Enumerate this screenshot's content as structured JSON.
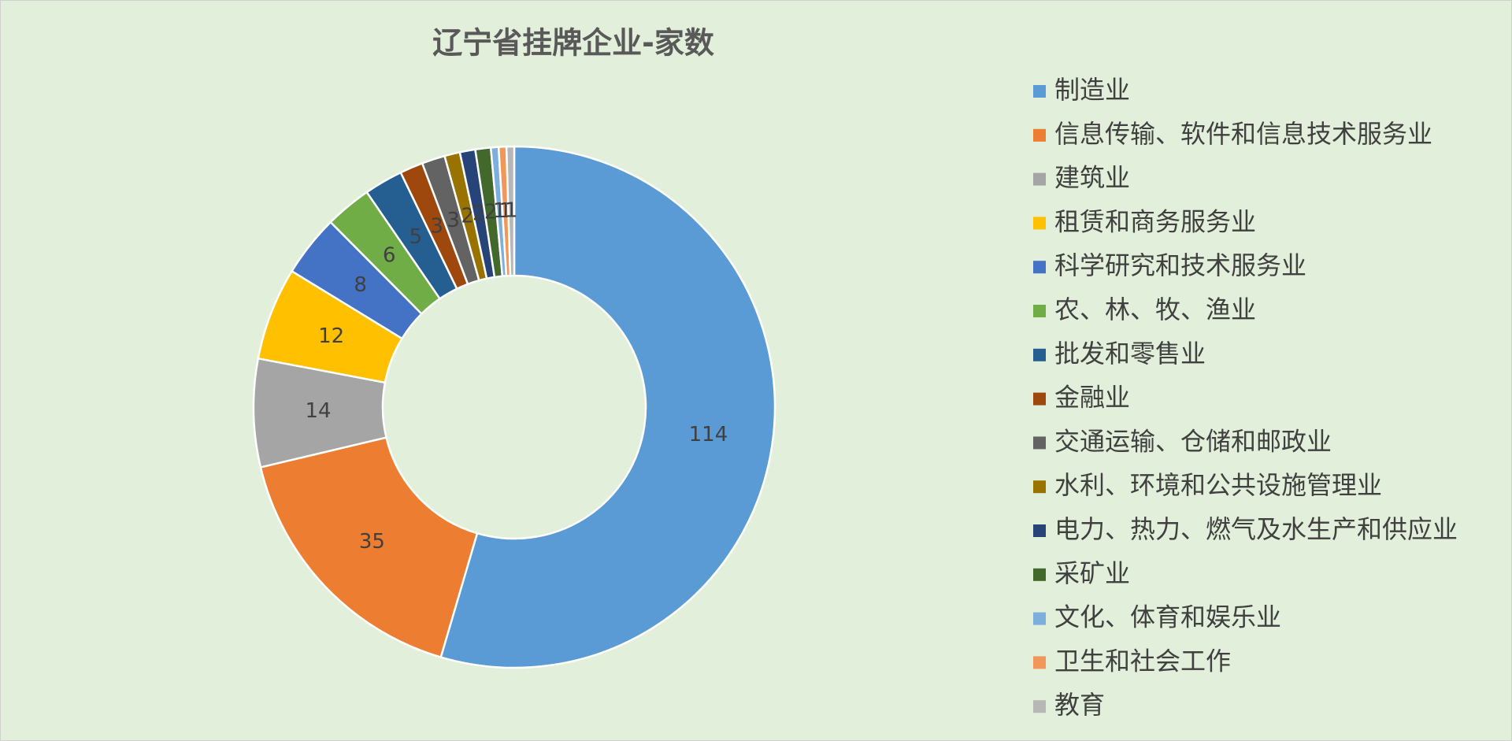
{
  "chart_data": {
    "type": "doughnut",
    "title": "辽宁省挂牌企业-家数",
    "categories": [
      "制造业",
      "信息传输、软件和信息技术服务业",
      "建筑业",
      "租赁和商务服务业",
      "科学研究和技术服务业",
      "农、林、牧、渔业",
      "批发和零售业",
      "金融业",
      "交通运输、仓储和邮政业",
      "水利、环境和公共设施管理业",
      "电力、热力、燃气及水生产和供应业",
      "采矿业",
      "文化、体育和娱乐业",
      "卫生和社会工作",
      "教育"
    ],
    "values": [
      114,
      35,
      14,
      12,
      8,
      6,
      5,
      3,
      3,
      2,
      2,
      2,
      1,
      1,
      1
    ],
    "colors": [
      "#5b9bd5",
      "#ed7d31",
      "#a5a5a5",
      "#ffc000",
      "#4472c4",
      "#70ad47",
      "#255e91",
      "#9e480e",
      "#636363",
      "#997300",
      "#264478",
      "#43682b",
      "#7cafdd",
      "#f1975a",
      "#b7b7b7"
    ],
    "legend": "right"
  }
}
